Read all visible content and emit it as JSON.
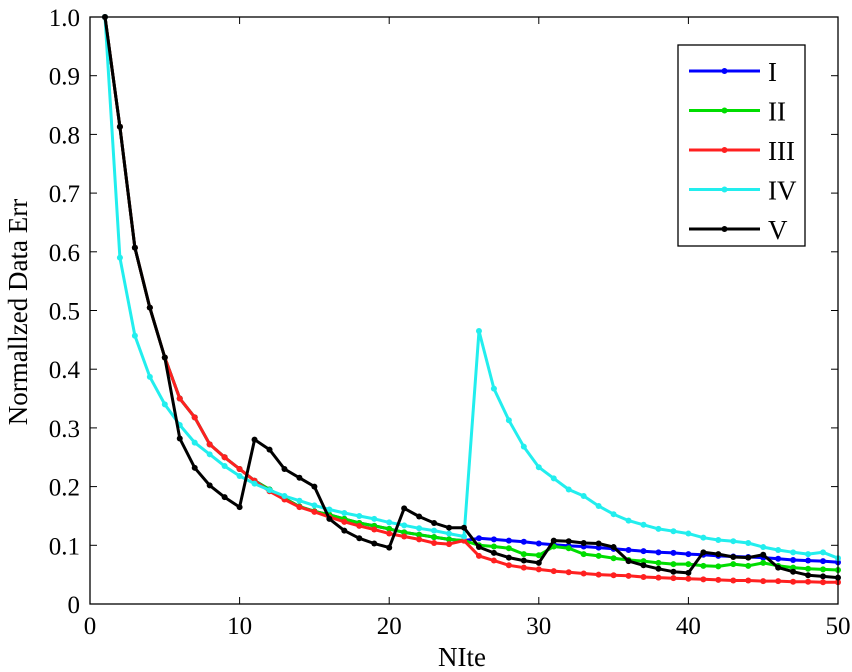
{
  "chart_data": {
    "type": "line",
    "title": "",
    "xlabel": "NIte",
    "ylabel": "Normallzed Data Err",
    "xlim": [
      0,
      50
    ],
    "ylim": [
      0,
      1
    ],
    "x_ticks": [
      0,
      10,
      20,
      30,
      40,
      50
    ],
    "y_ticks": [
      0,
      0.1,
      0.2,
      0.3,
      0.4,
      0.5,
      0.6,
      0.7,
      0.8,
      0.9,
      1.0
    ],
    "y_tick_labels": [
      "0",
      "0.1",
      "0.2",
      "0.3",
      "0.4",
      "0.5",
      "0.6",
      "0.7",
      "0.8",
      "0.9",
      "1.0"
    ],
    "x_tick_labels": [
      "0",
      "10",
      "20",
      "30",
      "40",
      "50"
    ],
    "legend_position": "top-right",
    "x": [
      1,
      2,
      3,
      4,
      5,
      6,
      7,
      8,
      9,
      10,
      11,
      12,
      13,
      14,
      15,
      16,
      17,
      18,
      19,
      20,
      21,
      22,
      23,
      24,
      25,
      26,
      27,
      28,
      29,
      30,
      31,
      32,
      33,
      34,
      35,
      36,
      37,
      38,
      39,
      40,
      41,
      42,
      43,
      44,
      45,
      46,
      47,
      48,
      49,
      50
    ],
    "series": [
      {
        "name": "I",
        "color": "#0000ff",
        "values": [
          1.0,
          0.813,
          0.607,
          0.505,
          0.42,
          0.35,
          0.318,
          0.272,
          0.25,
          0.23,
          0.21,
          0.195,
          0.18,
          0.166,
          0.158,
          0.152,
          0.145,
          0.138,
          0.133,
          0.128,
          0.122,
          0.118,
          0.114,
          0.11,
          0.108,
          0.112,
          0.11,
          0.108,
          0.106,
          0.103,
          0.101,
          0.099,
          0.098,
          0.096,
          0.094,
          0.092,
          0.09,
          0.088,
          0.087,
          0.085,
          0.084,
          0.082,
          0.081,
          0.08,
          0.079,
          0.077,
          0.075,
          0.074,
          0.073,
          0.071
        ]
      },
      {
        "name": "II",
        "color": "#00dd00",
        "values": [
          1.0,
          0.813,
          0.607,
          0.505,
          0.42,
          0.35,
          0.318,
          0.272,
          0.25,
          0.23,
          0.21,
          0.195,
          0.18,
          0.166,
          0.158,
          0.152,
          0.145,
          0.138,
          0.133,
          0.128,
          0.122,
          0.118,
          0.114,
          0.11,
          0.108,
          0.1,
          0.098,
          0.095,
          0.085,
          0.083,
          0.098,
          0.095,
          0.085,
          0.082,
          0.078,
          0.075,
          0.073,
          0.07,
          0.068,
          0.068,
          0.065,
          0.064,
          0.068,
          0.065,
          0.07,
          0.065,
          0.062,
          0.06,
          0.059,
          0.058
        ]
      },
      {
        "name": "III",
        "color": "#ff2020",
        "values": [
          1.0,
          0.813,
          0.607,
          0.505,
          0.42,
          0.35,
          0.318,
          0.272,
          0.25,
          0.23,
          0.21,
          0.192,
          0.178,
          0.165,
          0.157,
          0.148,
          0.14,
          0.133,
          0.127,
          0.12,
          0.115,
          0.11,
          0.104,
          0.102,
          0.108,
          0.082,
          0.074,
          0.066,
          0.062,
          0.059,
          0.056,
          0.054,
          0.052,
          0.05,
          0.049,
          0.048,
          0.046,
          0.045,
          0.044,
          0.043,
          0.042,
          0.041,
          0.04,
          0.04,
          0.039,
          0.039,
          0.038,
          0.038,
          0.037,
          0.037
        ]
      },
      {
        "name": "IV",
        "color": "#22eeee",
        "values": [
          1.0,
          0.59,
          0.457,
          0.387,
          0.34,
          0.305,
          0.275,
          0.255,
          0.235,
          0.218,
          0.205,
          0.194,
          0.184,
          0.176,
          0.168,
          0.161,
          0.155,
          0.15,
          0.145,
          0.139,
          0.134,
          0.129,
          0.125,
          0.12,
          0.115,
          0.465,
          0.367,
          0.313,
          0.268,
          0.233,
          0.214,
          0.195,
          0.184,
          0.167,
          0.153,
          0.142,
          0.135,
          0.128,
          0.124,
          0.12,
          0.113,
          0.109,
          0.107,
          0.104,
          0.097,
          0.092,
          0.088,
          0.085,
          0.088,
          0.078
        ]
      },
      {
        "name": "V",
        "color": "#000000",
        "values": [
          1.0,
          0.813,
          0.607,
          0.505,
          0.42,
          0.282,
          0.232,
          0.202,
          0.182,
          0.165,
          0.28,
          0.263,
          0.23,
          0.215,
          0.2,
          0.145,
          0.125,
          0.112,
          0.103,
          0.096,
          0.163,
          0.149,
          0.138,
          0.13,
          0.13,
          0.097,
          0.087,
          0.079,
          0.074,
          0.07,
          0.108,
          0.107,
          0.104,
          0.103,
          0.097,
          0.073,
          0.066,
          0.06,
          0.055,
          0.053,
          0.088,
          0.085,
          0.08,
          0.079,
          0.084,
          0.062,
          0.055,
          0.049,
          0.047,
          0.045
        ]
      }
    ]
  }
}
